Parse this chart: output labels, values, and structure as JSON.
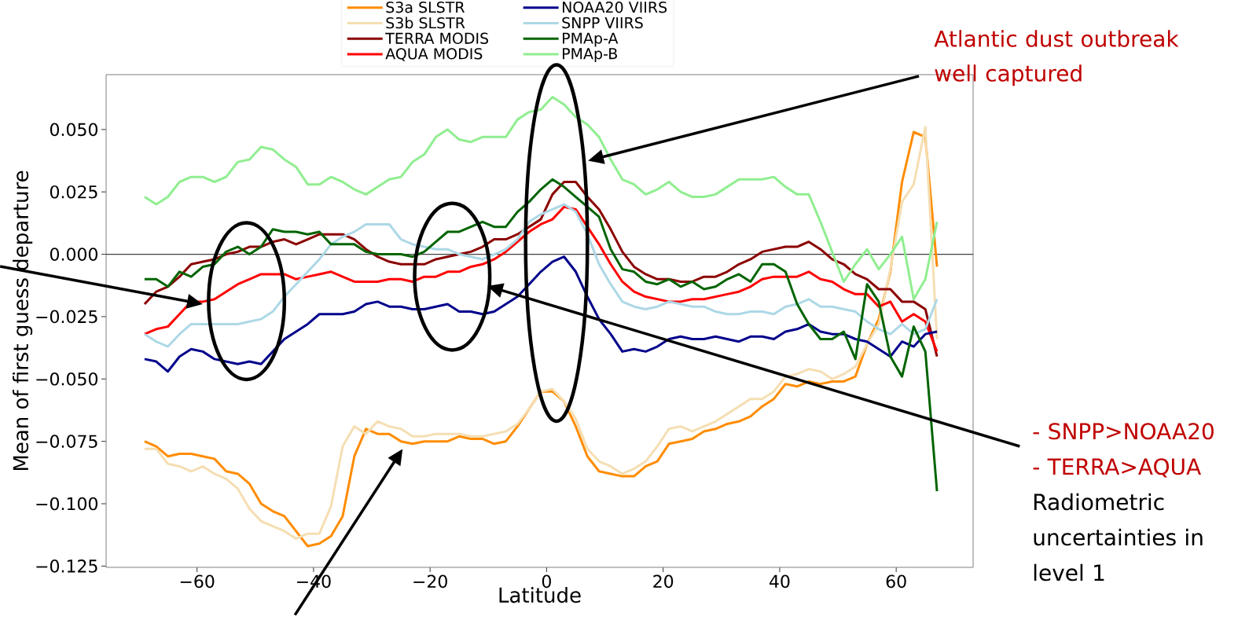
{
  "chart_data": {
    "type": "line",
    "xlabel": "Latitude",
    "ylabel": "Mean of first guess departure",
    "x": [
      -69,
      -67,
      -65,
      -63,
      -61,
      -59,
      -57,
      -55,
      -53,
      -51,
      -49,
      -47,
      -45,
      -43,
      -41,
      -39,
      -37,
      -35,
      -33,
      -31,
      -29,
      -27,
      -25,
      -23,
      -21,
      -19,
      -17,
      -15,
      -13,
      -11,
      -9,
      -7,
      -5,
      -3,
      -1,
      1,
      3,
      5,
      7,
      9,
      11,
      13,
      15,
      17,
      19,
      21,
      23,
      25,
      27,
      29,
      31,
      33,
      35,
      37,
      39,
      41,
      43,
      45,
      47,
      49,
      51,
      53,
      55,
      57,
      59,
      61,
      63,
      65,
      67
    ],
    "series": [
      {
        "name": "S3a SLSTR",
        "color": "#ff8c00",
        "values": [
          -0.075,
          -0.077,
          -0.081,
          -0.08,
          -0.08,
          -0.081,
          -0.082,
          -0.087,
          -0.088,
          -0.092,
          -0.1,
          -0.103,
          -0.105,
          -0.111,
          -0.117,
          -0.116,
          -0.113,
          -0.105,
          -0.081,
          -0.07,
          -0.072,
          -0.072,
          -0.075,
          -0.076,
          -0.075,
          -0.075,
          -0.075,
          -0.073,
          -0.074,
          -0.074,
          -0.076,
          -0.075,
          -0.069,
          -0.062,
          -0.055,
          -0.055,
          -0.059,
          -0.069,
          -0.081,
          -0.087,
          -0.088,
          -0.089,
          -0.089,
          -0.085,
          -0.083,
          -0.076,
          -0.075,
          -0.074,
          -0.071,
          -0.07,
          -0.068,
          -0.067,
          -0.065,
          -0.061,
          -0.058,
          -0.052,
          -0.053,
          -0.051,
          -0.052,
          -0.051,
          -0.051,
          -0.049,
          -0.036,
          -0.026,
          -0.007,
          0.029,
          0.049,
          0.047,
          -0.005
        ]
      },
      {
        "name": "S3b SLSTR",
        "color": "#f5deb3",
        "values": [
          -0.078,
          -0.078,
          -0.084,
          -0.085,
          -0.087,
          -0.085,
          -0.088,
          -0.09,
          -0.094,
          -0.102,
          -0.107,
          -0.109,
          -0.111,
          -0.114,
          -0.112,
          -0.112,
          -0.101,
          -0.077,
          -0.069,
          -0.072,
          -0.067,
          -0.069,
          -0.07,
          -0.073,
          -0.073,
          -0.072,
          -0.072,
          -0.072,
          -0.073,
          -0.073,
          -0.072,
          -0.071,
          -0.068,
          -0.062,
          -0.055,
          -0.054,
          -0.059,
          -0.066,
          -0.078,
          -0.083,
          -0.085,
          -0.088,
          -0.086,
          -0.083,
          -0.077,
          -0.07,
          -0.069,
          -0.071,
          -0.069,
          -0.067,
          -0.064,
          -0.061,
          -0.058,
          -0.058,
          -0.055,
          -0.049,
          -0.048,
          -0.046,
          -0.047,
          -0.05,
          -0.048,
          -0.045,
          -0.036,
          -0.028,
          -0.006,
          0.021,
          0.028,
          0.051,
          -0.034
        ]
      },
      {
        "name": "TERRA MODIS",
        "color": "#8b0000",
        "values": [
          -0.02,
          -0.015,
          -0.013,
          -0.009,
          -0.004,
          -0.003,
          -0.002,
          0,
          0.001,
          0.003,
          0.003,
          0.005,
          0.006,
          0.004,
          0.006,
          0.008,
          0.008,
          0.008,
          0.006,
          0.002,
          -0.001,
          -0.003,
          -0.004,
          -0.004,
          -0.004,
          -0.002,
          -0.001,
          0,
          0.001,
          0.003,
          0.006,
          0.006,
          0.008,
          0.011,
          0.014,
          0.024,
          0.029,
          0.029,
          0.023,
          0.018,
          0.01,
          0.001,
          -0.005,
          -0.008,
          -0.01,
          -0.01,
          -0.011,
          -0.011,
          -0.009,
          -0.009,
          -0.007,
          -0.004,
          -0.002,
          0.001,
          0.002,
          0.003,
          0.003,
          0.005,
          0.002,
          -0.002,
          -0.004,
          -0.008,
          -0.01,
          -0.014,
          -0.014,
          -0.019,
          -0.019,
          -0.022,
          -0.041
        ]
      },
      {
        "name": "AQUA MODIS",
        "color": "#ff0000",
        "values": [
          -0.032,
          -0.03,
          -0.029,
          -0.024,
          -0.019,
          -0.019,
          -0.018,
          -0.015,
          -0.012,
          -0.01,
          -0.008,
          -0.008,
          -0.008,
          -0.01,
          -0.009,
          -0.008,
          -0.007,
          -0.009,
          -0.011,
          -0.011,
          -0.011,
          -0.01,
          -0.01,
          -0.011,
          -0.009,
          -0.009,
          -0.007,
          -0.007,
          -0.005,
          -0.004,
          -0.002,
          0.001,
          0.005,
          0.009,
          0.012,
          0.014,
          0.019,
          0.018,
          0.011,
          0.004,
          -0.004,
          -0.011,
          -0.015,
          -0.017,
          -0.018,
          -0.019,
          -0.019,
          -0.018,
          -0.018,
          -0.017,
          -0.016,
          -0.015,
          -0.013,
          -0.01,
          -0.009,
          -0.009,
          -0.009,
          -0.007,
          -0.01,
          -0.011,
          -0.014,
          -0.016,
          -0.016,
          -0.021,
          -0.019,
          -0.027,
          -0.024,
          -0.027,
          -0.039
        ]
      },
      {
        "name": "NOAA20 VIIRS",
        "color": "#00008b",
        "values": [
          -0.042,
          -0.043,
          -0.047,
          -0.041,
          -0.038,
          -0.039,
          -0.042,
          -0.043,
          -0.044,
          -0.043,
          -0.044,
          -0.039,
          -0.034,
          -0.031,
          -0.028,
          -0.024,
          -0.024,
          -0.024,
          -0.023,
          -0.02,
          -0.019,
          -0.021,
          -0.021,
          -0.022,
          -0.022,
          -0.021,
          -0.02,
          -0.023,
          -0.023,
          -0.024,
          -0.023,
          -0.02,
          -0.017,
          -0.012,
          -0.007,
          -0.003,
          -0.001,
          -0.007,
          -0.017,
          -0.026,
          -0.032,
          -0.039,
          -0.038,
          -0.039,
          -0.037,
          -0.034,
          -0.033,
          -0.034,
          -0.034,
          -0.033,
          -0.034,
          -0.035,
          -0.033,
          -0.033,
          -0.034,
          -0.031,
          -0.03,
          -0.028,
          -0.031,
          -0.032,
          -0.032,
          -0.034,
          -0.035,
          -0.038,
          -0.041,
          -0.035,
          -0.037,
          -0.032,
          -0.031
        ]
      },
      {
        "name": "SNPP VIIRS",
        "color": "#add8e6",
        "values": [
          -0.032,
          -0.035,
          -0.037,
          -0.032,
          -0.028,
          -0.028,
          -0.028,
          -0.028,
          -0.028,
          -0.027,
          -0.026,
          -0.023,
          -0.017,
          -0.012,
          -0.007,
          -0.002,
          0.004,
          0.007,
          0.009,
          0.012,
          0.012,
          0.012,
          0.006,
          0.004,
          0.003,
          0.002,
          0.002,
          0,
          -0.001,
          -0.002,
          0,
          0.002,
          0.006,
          0.013,
          0.016,
          0.018,
          0.02,
          0.017,
          0.008,
          -0.004,
          -0.012,
          -0.019,
          -0.021,
          -0.022,
          -0.021,
          -0.019,
          -0.02,
          -0.021,
          -0.021,
          -0.023,
          -0.024,
          -0.024,
          -0.023,
          -0.023,
          -0.024,
          -0.021,
          -0.02,
          -0.018,
          -0.021,
          -0.021,
          -0.022,
          -0.023,
          -0.027,
          -0.03,
          -0.032,
          -0.028,
          -0.032,
          -0.03,
          -0.018
        ]
      },
      {
        "name": "PMAp-A",
        "color": "#006400",
        "values": [
          -0.01,
          -0.01,
          -0.013,
          -0.007,
          -0.009,
          -0.005,
          -0.004,
          0.001,
          0.003,
          0,
          0.003,
          0.01,
          0.009,
          0.009,
          0.008,
          0.009,
          0.004,
          0.004,
          0.004,
          0.001,
          0,
          0,
          0,
          -0.001,
          0.001,
          0.005,
          0.009,
          0.009,
          0.011,
          0.013,
          0.011,
          0.011,
          0.017,
          0.021,
          0.026,
          0.03,
          0.027,
          0.023,
          0.019,
          0.015,
          0.002,
          -0.006,
          -0.007,
          -0.011,
          -0.012,
          -0.01,
          -0.013,
          -0.011,
          -0.014,
          -0.013,
          -0.01,
          -0.008,
          -0.011,
          -0.004,
          -0.004,
          -0.007,
          -0.02,
          -0.028,
          -0.034,
          -0.034,
          -0.031,
          -0.042,
          -0.012,
          -0.019,
          -0.041,
          -0.049,
          -0.029,
          -0.039,
          -0.095
        ]
      },
      {
        "name": "PMAp-B",
        "color": "#90ee90",
        "values": [
          0.023,
          0.02,
          0.023,
          0.029,
          0.031,
          0.031,
          0.029,
          0.031,
          0.037,
          0.038,
          0.043,
          0.042,
          0.038,
          0.035,
          0.028,
          0.028,
          0.031,
          0.029,
          0.026,
          0.024,
          0.027,
          0.03,
          0.031,
          0.037,
          0.04,
          0.047,
          0.05,
          0.046,
          0.045,
          0.047,
          0.047,
          0.047,
          0.054,
          0.057,
          0.058,
          0.063,
          0.06,
          0.055,
          0.052,
          0.047,
          0.038,
          0.03,
          0.028,
          0.024,
          0.026,
          0.029,
          0.025,
          0.023,
          0.023,
          0.024,
          0.027,
          0.03,
          0.03,
          0.03,
          0.031,
          0.027,
          0.024,
          0.024,
          0.013,
          0.001,
          -0.011,
          -0.004,
          0.002,
          -0.006,
          0.0,
          0.007,
          -0.018,
          -0.01,
          0.013
        ]
      }
    ],
    "xlim": [
      -75.6,
      73.2
    ],
    "ylim": [
      -0.1255,
      0.072
    ],
    "xticks": [
      {
        "value": -60,
        "label": "−60"
      },
      {
        "value": -40,
        "label": "−40"
      },
      {
        "value": -20,
        "label": "−20"
      },
      0,
      20,
      40,
      60
    ],
    "yticks": [
      {
        "value": -0.125,
        "label": "−0.125"
      },
      {
        "value": -0.1,
        "label": "−0.100"
      },
      {
        "value": -0.075,
        "label": "−0.075"
      },
      {
        "value": -0.05,
        "label": "−0.050"
      },
      {
        "value": -0.025,
        "label": "−0.025"
      },
      {
        "value": 0,
        "label": "0.000"
      },
      {
        "value": 0.025,
        "label": "0.025"
      },
      {
        "value": 0.05,
        "label": "0.050"
      }
    ],
    "ref_lines": [
      {
        "axis": "y",
        "value": 0,
        "color": "#404040"
      }
    ],
    "legend": "top",
    "annotations": [
      "Atlantic dust outbreak well captured",
      "- SNPP>NOAA20",
      "- TERRA>AQUA",
      "Radiometric uncertainties in level 1"
    ]
  }
}
